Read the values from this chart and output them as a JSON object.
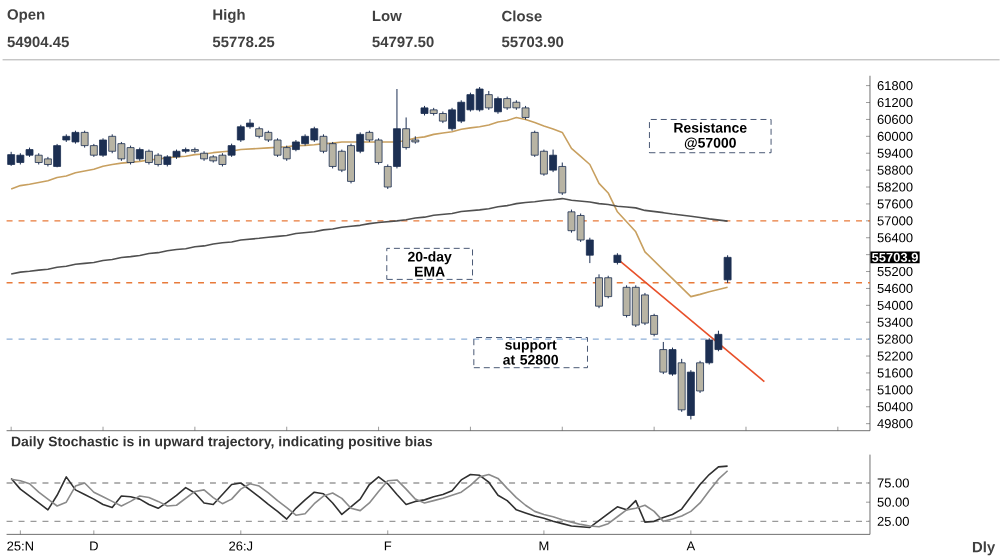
{
  "chart_data": [
    {
      "type": "candlestick",
      "categories": [
        null,
        null,
        null,
        null,
        null,
        null,
        null,
        null,
        null,
        null,
        null,
        null,
        null,
        null,
        null,
        null,
        null,
        null,
        null,
        null,
        null,
        null,
        null,
        null,
        null,
        null,
        null,
        null,
        null,
        null,
        null,
        null,
        null,
        null,
        null,
        null,
        null,
        null,
        null,
        null,
        null,
        null,
        null,
        null,
        null,
        null,
        null,
        null,
        null,
        null,
        null,
        null,
        null,
        null,
        null,
        null,
        null,
        null,
        null,
        null,
        null,
        null,
        null,
        null,
        null,
        null,
        null,
        null,
        null,
        null,
        null,
        null,
        null,
        null,
        null,
        null,
        null,
        null,
        null,
        null,
        null,
        null,
        null,
        null,
        null,
        null,
        null,
        null,
        null,
        null,
        null,
        null,
        null,
        null
      ],
      "ohlc": [
        [
          59000,
          59450,
          58950,
          59350
        ],
        [
          59070,
          59400,
          59000,
          59330
        ],
        [
          59330,
          59600,
          59270,
          59530
        ],
        [
          59330,
          59400,
          59000,
          59070
        ],
        [
          59200,
          59270,
          58930,
          59000
        ],
        [
          58930,
          59730,
          58900,
          59670
        ],
        [
          59870,
          60070,
          59800,
          60000
        ],
        [
          59800,
          60200,
          59740,
          60140
        ],
        [
          60140,
          60200,
          59600,
          59670
        ],
        [
          59670,
          59730,
          59270,
          59330
        ],
        [
          59330,
          59930,
          59270,
          59870
        ],
        [
          60000,
          60070,
          59400,
          59470
        ],
        [
          59740,
          59800,
          59130,
          59200
        ],
        [
          59600,
          59670,
          59000,
          59070
        ],
        [
          59200,
          59600,
          59130,
          59530
        ],
        [
          59470,
          59530,
          59000,
          59070
        ],
        [
          59330,
          59400,
          58930,
          59000
        ],
        [
          59000,
          59330,
          58930,
          59270
        ],
        [
          59270,
          59530,
          59200,
          59470
        ],
        [
          59470,
          59600,
          59400,
          59530
        ],
        [
          59530,
          59600,
          59400,
          59470
        ],
        [
          59400,
          59470,
          59130,
          59200
        ],
        [
          59270,
          59330,
          59070,
          59130
        ],
        [
          59330,
          59400,
          58930,
          59000
        ],
        [
          59330,
          59740,
          59270,
          59670
        ],
        [
          59870,
          60410,
          59800,
          60340
        ],
        [
          60340,
          60610,
          60270,
          60470
        ],
        [
          60270,
          60340,
          59930,
          60000
        ],
        [
          60140,
          60200,
          59800,
          59870
        ],
        [
          59870,
          59930,
          59270,
          59330
        ],
        [
          59600,
          59670,
          59130,
          59200
        ],
        [
          59530,
          59870,
          59470,
          59800
        ],
        [
          59740,
          60070,
          59670,
          60000
        ],
        [
          59870,
          60340,
          59800,
          60270
        ],
        [
          60000,
          60070,
          59400,
          59470
        ],
        [
          59740,
          59800,
          58860,
          58930
        ],
        [
          59470,
          59530,
          58730,
          58800
        ],
        [
          59670,
          59740,
          58330,
          58400
        ],
        [
          59470,
          60140,
          59400,
          60070
        ],
        [
          60140,
          60200,
          59800,
          59870
        ],
        [
          59870,
          59930,
          59000,
          59070
        ],
        [
          58930,
          59000,
          58130,
          58200
        ],
        [
          58930,
          61680,
          58860,
          60270
        ],
        [
          60270,
          60670,
          59530,
          59600
        ],
        [
          59870,
          60000,
          59740,
          59800
        ],
        [
          60810,
          61080,
          60740,
          61010
        ],
        [
          60940,
          61010,
          60740,
          60810
        ],
        [
          60810,
          60880,
          60470,
          60540
        ],
        [
          60270,
          61010,
          60200,
          60940
        ],
        [
          60540,
          61280,
          60470,
          61210
        ],
        [
          60940,
          61550,
          60880,
          61480
        ],
        [
          60940,
          61750,
          60880,
          61680
        ],
        [
          61480,
          61610,
          60940,
          61010
        ],
        [
          60870,
          61410,
          60800,
          61340
        ],
        [
          61340,
          61410,
          60940,
          61010
        ],
        [
          61210,
          61280,
          60940,
          61010
        ],
        [
          61010,
          61080,
          60600,
          60670
        ],
        [
          60140,
          60200,
          59270,
          59330
        ],
        [
          59470,
          59530,
          58600,
          58660
        ],
        [
          58800,
          59530,
          58730,
          59330
        ],
        [
          58930,
          59070,
          57920,
          57990
        ],
        [
          57320,
          57400,
          56580,
          56650
        ],
        [
          57190,
          57260,
          56250,
          56320
        ],
        [
          55780,
          56400,
          55500,
          56320
        ],
        [
          54980,
          55100,
          53900,
          53970
        ],
        [
          54980,
          55050,
          54250,
          54310
        ],
        [
          55520,
          55850,
          55450,
          55780
        ],
        [
          54640,
          54710,
          53570,
          53640
        ],
        [
          54640,
          54710,
          53230,
          53300
        ],
        [
          54370,
          54440,
          53300,
          53370
        ],
        [
          53640,
          53700,
          52900,
          52970
        ],
        [
          52430,
          52700,
          51560,
          51630
        ],
        [
          51560,
          52500,
          51500,
          52430
        ],
        [
          51960,
          52100,
          50220,
          50290
        ],
        [
          50090,
          51700,
          49950,
          51630
        ],
        [
          51960,
          52030,
          50890,
          50960
        ],
        [
          51960,
          52830,
          51900,
          52770
        ],
        [
          52430,
          53100,
          52370,
          52970
        ],
        [
          54904.45,
          55778.25,
          54797.5,
          55703.9
        ],
        null,
        null,
        null,
        null,
        null,
        null,
        null,
        null,
        null,
        null,
        null,
        null,
        null,
        null,
        null
      ],
      "colors": [
        "#1c2f52",
        "#1c2f52",
        "#1c2f52",
        "#b8b4a4",
        "#b8b4a4",
        "#1c2f52",
        "#1c2f52",
        "#1c2f52",
        "#b8b4a4",
        "#b8b4a4",
        "#1c2f52",
        "#b8b4a4",
        "#b8b4a4",
        "#b8b4a4",
        "#1c2f52",
        "#b8b4a4",
        "#b8b4a4",
        "#1c2f52",
        "#1c2f52",
        "#1c2f52",
        "#b8b4a4",
        "#b8b4a4",
        "#b8b4a4",
        "#b8b4a4",
        "#1c2f52",
        "#1c2f52",
        "#1c2f52",
        "#b8b4a4",
        "#b8b4a4",
        "#b8b4a4",
        "#b8b4a4",
        "#1c2f52",
        "#1c2f52",
        "#1c2f52",
        "#b8b4a4",
        "#b8b4a4",
        "#b8b4a4",
        "#b8b4a4",
        "#1c2f52",
        "#b8b4a4",
        "#b8b4a4",
        "#b8b4a4",
        "#1c2f52",
        "#b8b4a4",
        "#b8b4a4",
        "#1c2f52",
        "#b8b4a4",
        "#b8b4a4",
        "#1c2f52",
        "#1c2f52",
        "#1c2f52",
        "#1c2f52",
        "#b8b4a4",
        "#1c2f52",
        "#b8b4a4",
        "#b8b4a4",
        "#b8b4a4",
        "#b8b4a4",
        "#b8b4a4",
        "#1c2f52",
        "#b8b4a4",
        "#b8b4a4",
        "#b8b4a4",
        "#1c2f52",
        "#b8b4a4",
        "#b8b4a4",
        "#1c2f52",
        "#b8b4a4",
        "#b8b4a4",
        "#b8b4a4",
        "#b8b4a4",
        "#b8b4a4",
        "#1c2f52",
        "#b8b4a4",
        "#1c2f52",
        "#b8b4a4",
        "#1c2f52",
        "#1c2f52",
        "#1c2f52",
        null,
        null,
        null,
        null,
        null,
        null,
        null,
        null,
        null,
        null,
        null,
        null,
        null,
        null,
        null
      ],
      "series": [
        {
          "type": "line",
          "color": "#c8a060",
          "values": [
            58130,
            58250,
            58300,
            58360,
            58420,
            58540,
            58590,
            58710,
            58770,
            58830,
            58940,
            59000,
            59050,
            59080,
            59110,
            59160,
            59190,
            59240,
            59270,
            59290,
            59350,
            59370,
            59420,
            59450,
            59480,
            59530,
            59550,
            59570,
            59590,
            59610,
            59630,
            59670,
            59680,
            59700,
            59740,
            59760,
            59800,
            59800,
            59800,
            59800,
            59800,
            59800,
            59800,
            59850,
            59940,
            59980,
            60070,
            60120,
            60160,
            60250,
            60300,
            60340,
            60400,
            60510,
            60560,
            60670,
            60600,
            60490,
            60370,
            60260,
            60140,
            59570,
            59290,
            59000,
            58330,
            57990,
            57320,
            56970,
            56610,
            55900,
            55580,
            55260,
            54950,
            54630,
            54310,
            54390,
            54480,
            54560,
            54640,
            null,
            null,
            null,
            null,
            null,
            null,
            null,
            null,
            null,
            null,
            null,
            null,
            null,
            null,
            null
          ]
        },
        {
          "type": "line",
          "color": "#505050",
          "values": [
            55110,
            55180,
            55210,
            55250,
            55280,
            55350,
            55390,
            55460,
            55490,
            55520,
            55590,
            55630,
            55700,
            55730,
            55770,
            55840,
            55870,
            55940,
            55980,
            56010,
            56080,
            56110,
            56180,
            56220,
            56250,
            56320,
            56350,
            56380,
            56420,
            56450,
            56480,
            56550,
            56580,
            56610,
            56680,
            56710,
            56770,
            56810,
            56840,
            56900,
            56940,
            56970,
            57000,
            57040,
            57100,
            57130,
            57200,
            57230,
            57260,
            57330,
            57360,
            57390,
            57430,
            57500,
            57540,
            57610,
            57650,
            57680,
            57720,
            57750,
            57790,
            57730,
            57700,
            57670,
            57610,
            57580,
            57520,
            57490,
            57460,
            57370,
            57330,
            57290,
            57240,
            57200,
            57160,
            57120,
            57070,
            57030,
            56990,
            null,
            null,
            null,
            null,
            null,
            null,
            null,
            null,
            null,
            null,
            null,
            null,
            null,
            null,
            null
          ]
        },
        {
          "type": "line",
          "color": "#e8502a",
          "values": [
            null,
            null,
            null,
            null,
            null,
            null,
            null,
            null,
            null,
            null,
            null,
            null,
            null,
            null,
            null,
            null,
            null,
            null,
            null,
            null,
            null,
            null,
            null,
            null,
            null,
            null,
            null,
            null,
            null,
            null,
            null,
            null,
            null,
            null,
            null,
            null,
            null,
            null,
            null,
            null,
            null,
            null,
            null,
            null,
            null,
            null,
            null,
            null,
            null,
            null,
            null,
            null,
            null,
            null,
            null,
            null,
            null,
            null,
            null,
            null,
            null,
            null,
            null,
            null,
            null,
            null,
            55650,
            null,
            null,
            null,
            null,
            null,
            null,
            null,
            null,
            null,
            null,
            null,
            null,
            null,
            null,
            null,
            51290,
            null,
            null,
            null,
            null,
            null,
            null,
            null,
            null,
            null,
            null,
            null
          ]
        }
      ],
      "ylim": [
        49550,
        62150
      ],
      "yticks": [
        49800,
        50400,
        51000,
        51600,
        52200,
        52800,
        53400,
        54000,
        54600,
        55200,
        {
          "value": 55800,
          "label": null
        },
        56400,
        57000,
        57600,
        58200,
        58800,
        59400,
        60000,
        60600,
        61200,
        61800
      ],
      "ref_lines": [
        {
          "axis": "y",
          "value": 57000,
          "color": "#e87a3a",
          "line_style": "dashed"
        },
        {
          "axis": "y",
          "value": 54800,
          "color": "#e87a3a",
          "line_style": "dashed"
        },
        {
          "axis": "y",
          "value": 52800,
          "color": "#8fb0d8",
          "line_style": "dashed"
        }
      ],
      "annotations": [
        "Open",
        "High",
        "Low",
        "Close",
        "54904.45",
        "55778.25",
        "54797.50",
        "55703.90",
        "Resistance @57000",
        "20-day EMA",
        "support at 52800",
        "55703.9"
      ]
    },
    {
      "type": "line",
      "title": "Daily  Stochastic is in upward trajectory,  indicating positive bias",
      "categories": [
        null,
        "25:N",
        null,
        null,
        null,
        null,
        null,
        null,
        null,
        "D",
        null,
        null,
        null,
        null,
        null,
        null,
        null,
        null,
        null,
        null,
        null,
        null,
        null,
        null,
        null,
        "26:J",
        null,
        null,
        null,
        null,
        null,
        null,
        null,
        null,
        null,
        null,
        null,
        null,
        null,
        null,
        null,
        "F",
        null,
        null,
        null,
        null,
        null,
        null,
        null,
        null,
        null,
        null,
        null,
        null,
        null,
        null,
        null,
        null,
        "M",
        null,
        null,
        null,
        null,
        null,
        null,
        null,
        null,
        null,
        null,
        null,
        null,
        null,
        null,
        null,
        "A",
        null,
        null,
        null,
        null,
        null,
        null,
        null,
        null,
        null,
        null,
        null,
        null,
        null,
        null,
        null,
        null,
        null,
        null,
        null
      ],
      "series": [
        {
          "color": "#303030",
          "values": [
            81,
            67,
            58,
            49,
            40,
            59,
            83,
            66,
            60,
            54,
            47,
            43,
            58,
            57,
            54,
            47,
            42,
            50,
            59,
            69,
            62,
            49,
            47,
            60,
            73,
            75,
            66,
            57,
            47,
            38,
            28,
            42,
            53,
            63,
            61,
            49,
            34,
            44,
            54,
            73,
            83,
            74,
            60,
            47,
            51,
            53,
            57,
            60,
            65,
            79,
            86,
            85,
            76,
            59,
            52,
            40,
            36,
            32,
            29,
            25,
            22,
            19,
            18,
            17,
            26,
            35,
            44,
            40,
            52,
            24,
            25,
            30,
            34,
            41,
            57,
            73,
            86,
            96,
            97,
            null,
            null,
            null,
            null,
            null,
            null,
            null,
            null,
            null,
            null,
            null,
            null,
            null,
            null,
            null
          ]
        },
        {
          "color": "#8a8a8a",
          "values": [
            80,
            78,
            74,
            63,
            54,
            45,
            50,
            71,
            75,
            63,
            57,
            51,
            45,
            51,
            58,
            56,
            51,
            45,
            46,
            55,
            64,
            66,
            56,
            48,
            54,
            67,
            74,
            71,
            62,
            52,
            43,
            33,
            35,
            48,
            58,
            62,
            55,
            42,
            39,
            49,
            64,
            78,
            79,
            67,
            54,
            49,
            52,
            55,
            59,
            63,
            72,
            83,
            86,
            81,
            68,
            56,
            46,
            38,
            34,
            31,
            27,
            24,
            21,
            19,
            18,
            22,
            31,
            40,
            42,
            46,
            38,
            25,
            28,
            32,
            38,
            49,
            65,
            80,
            91,
            null,
            null,
            null,
            null,
            null,
            null,
            null,
            null,
            null,
            null,
            null,
            null,
            null,
            null,
            null
          ]
        }
      ],
      "ylim": [
        8,
        112
      ],
      "yticks": [
        {
          "value": 25,
          "label": "25.00"
        },
        {
          "value": 50,
          "label": "50.00"
        },
        {
          "value": 75,
          "label": "75.00"
        }
      ],
      "ref_lines": [
        {
          "axis": "y",
          "value": 75,
          "color": "#9a9a9a",
          "line_style": "dashed"
        },
        {
          "axis": "y",
          "value": 25,
          "color": "#9a9a9a",
          "line_style": "dashed"
        }
      ],
      "annotations": [
        "Dly"
      ]
    }
  ]
}
